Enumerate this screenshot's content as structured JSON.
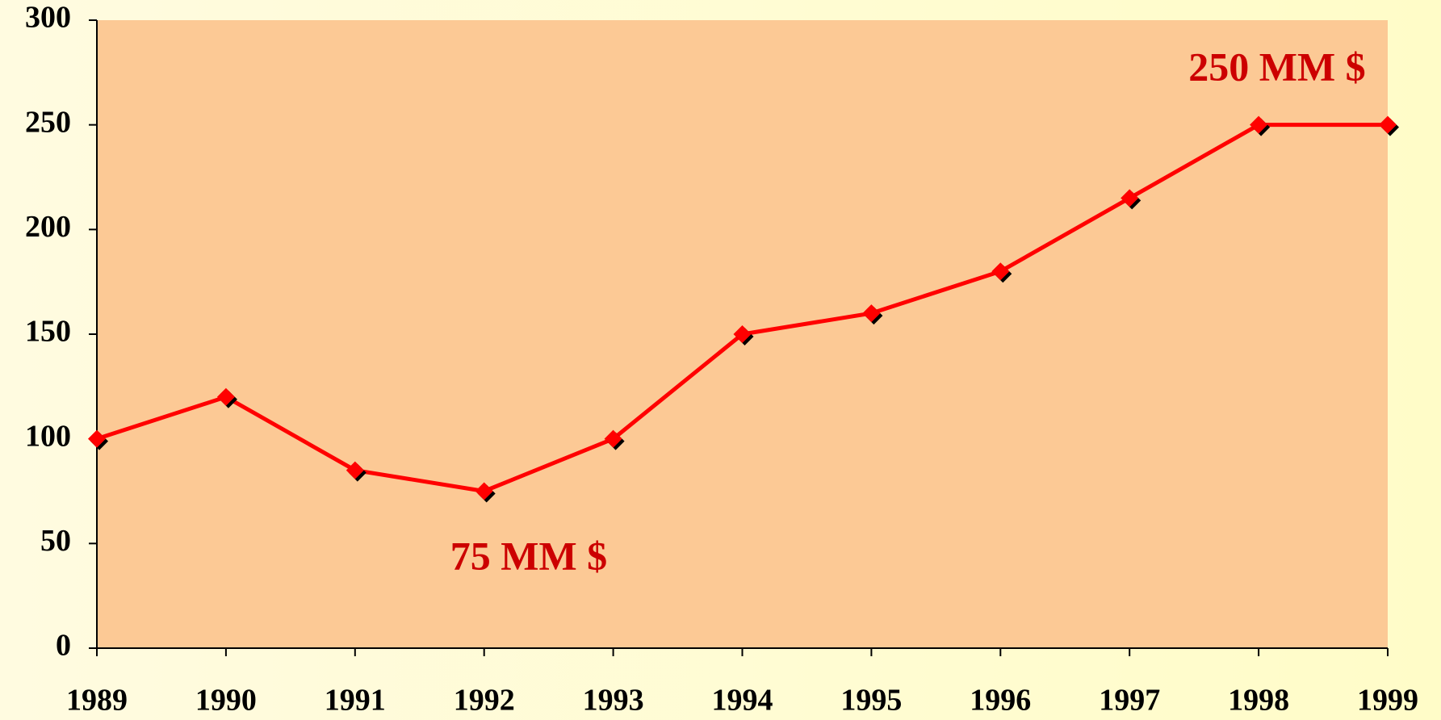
{
  "chart_data": {
    "type": "line",
    "categories": [
      "1989",
      "1990",
      "1991",
      "1992",
      "1993",
      "1994",
      "1995",
      "1996",
      "1997",
      "1998",
      "1999"
    ],
    "values": [
      100,
      120,
      85,
      75,
      100,
      150,
      160,
      180,
      215,
      250,
      250
    ],
    "color": "#ff0000",
    "ylim": [
      0,
      300
    ],
    "yticks": [
      0,
      50,
      100,
      150,
      200,
      250,
      300
    ],
    "grid": false,
    "annotations": [
      "75 MM $",
      "250 MM $"
    ]
  }
}
